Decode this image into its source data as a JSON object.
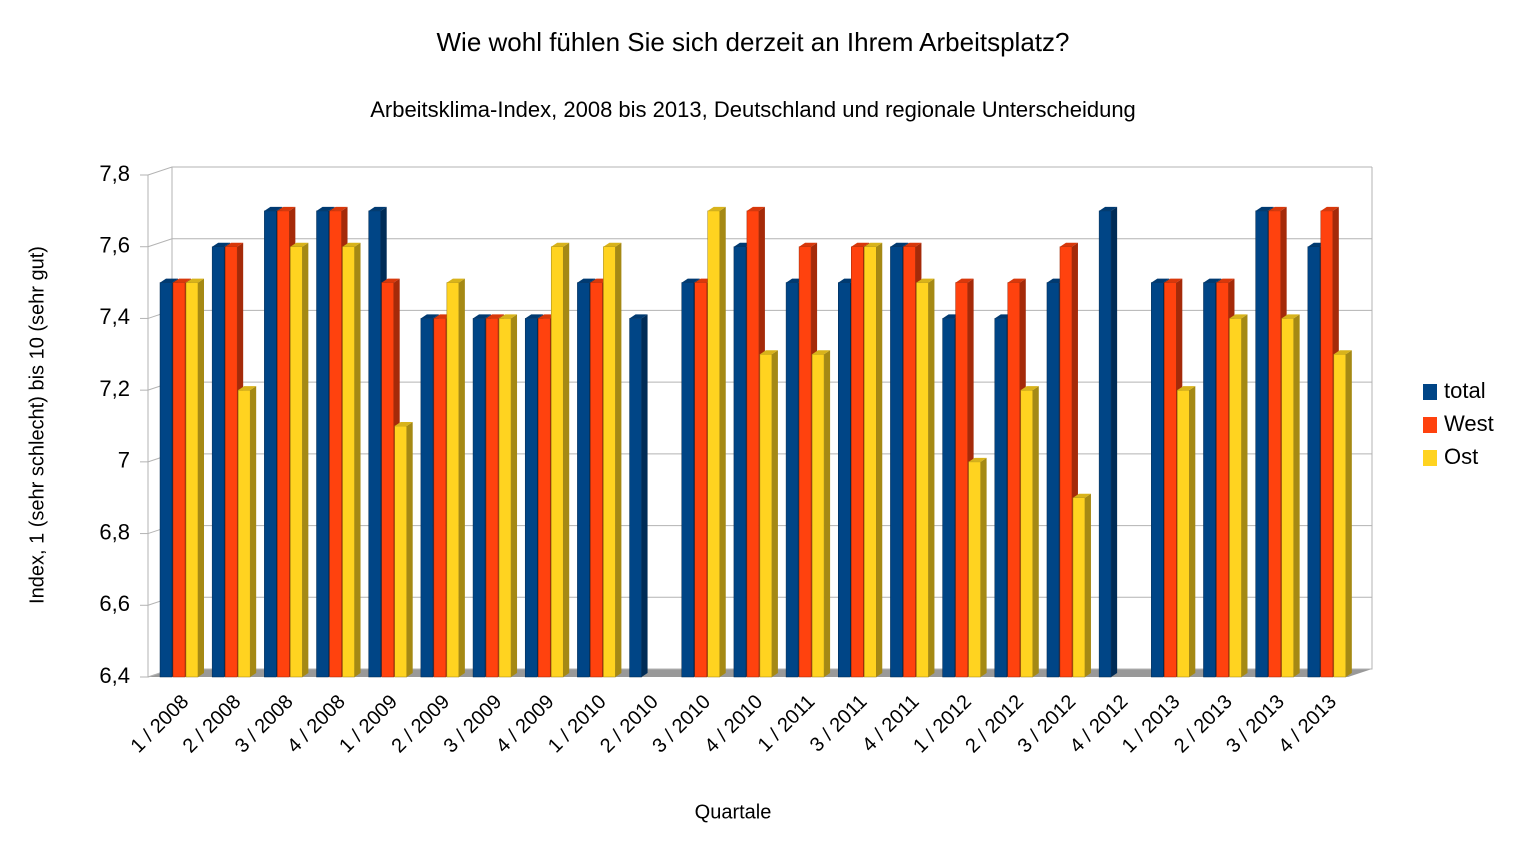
{
  "chart_data": {
    "type": "bar",
    "title": "Wie wohl fühlen Sie sich derzeit an Ihrem Arbeitsplatz?",
    "subtitle": "Arbeitsklima-Index, 2008 bis 2013, Deutschland und regionale Unterscheidung",
    "x_label": "Quartale",
    "y_label": "Index, 1 (sehr schlecht) bis 10 (sehr gut)",
    "categories": [
      "1 / 2008",
      "2 / 2008",
      "3 / 2008",
      "4 / 2008",
      "1 / 2009",
      "2 / 2009",
      "3 / 2009",
      "4 / 2009",
      "1 / 2010",
      "2 / 2010",
      "3 / 2010",
      "4 / 2010",
      "1 / 2011",
      "3 / 2011",
      "4 / 2011",
      "1 / 2012",
      "2 / 2012",
      "3 / 2012",
      "4 / 2012",
      "1 / 2013",
      "2 / 2013",
      "3 / 2013",
      "4 / 2013"
    ],
    "series": [
      {
        "name": "total",
        "color": "#004586",
        "values": [
          7.5,
          7.6,
          7.7,
          7.7,
          7.7,
          7.4,
          7.4,
          7.4,
          7.5,
          7.4,
          7.5,
          7.6,
          7.5,
          7.5,
          7.6,
          7.4,
          7.4,
          7.5,
          7.7,
          7.5,
          7.5,
          7.7,
          7.6
        ]
      },
      {
        "name": "West",
        "color": "#ff420e",
        "values": [
          7.5,
          7.6,
          7.7,
          7.7,
          7.5,
          7.4,
          7.4,
          7.4,
          7.5,
          null,
          7.5,
          7.7,
          7.6,
          7.6,
          7.6,
          7.5,
          7.5,
          7.6,
          null,
          7.5,
          7.5,
          7.7,
          7.7
        ]
      },
      {
        "name": "Ost",
        "color": "#ffd320",
        "values": [
          7.5,
          7.2,
          7.6,
          7.6,
          7.1,
          7.5,
          7.4,
          7.6,
          7.6,
          null,
          7.7,
          7.3,
          7.3,
          7.6,
          7.5,
          7.0,
          7.2,
          6.9,
          null,
          7.2,
          7.4,
          7.4,
          7.3
        ]
      }
    ],
    "ylim": [
      6.4,
      7.8
    ],
    "yticks": [
      {
        "value": 6.4,
        "label": "6,4"
      },
      {
        "value": 6.6,
        "label": "6,6"
      },
      {
        "value": 6.8,
        "label": "6,8"
      },
      7,
      {
        "value": 7.2,
        "label": "7,2"
      },
      {
        "value": 7.4,
        "label": "7,4"
      },
      {
        "value": 7.6,
        "label": "7,6"
      },
      {
        "value": 7.8,
        "label": "7,8"
      }
    ],
    "grid": true,
    "legend": "right"
  }
}
